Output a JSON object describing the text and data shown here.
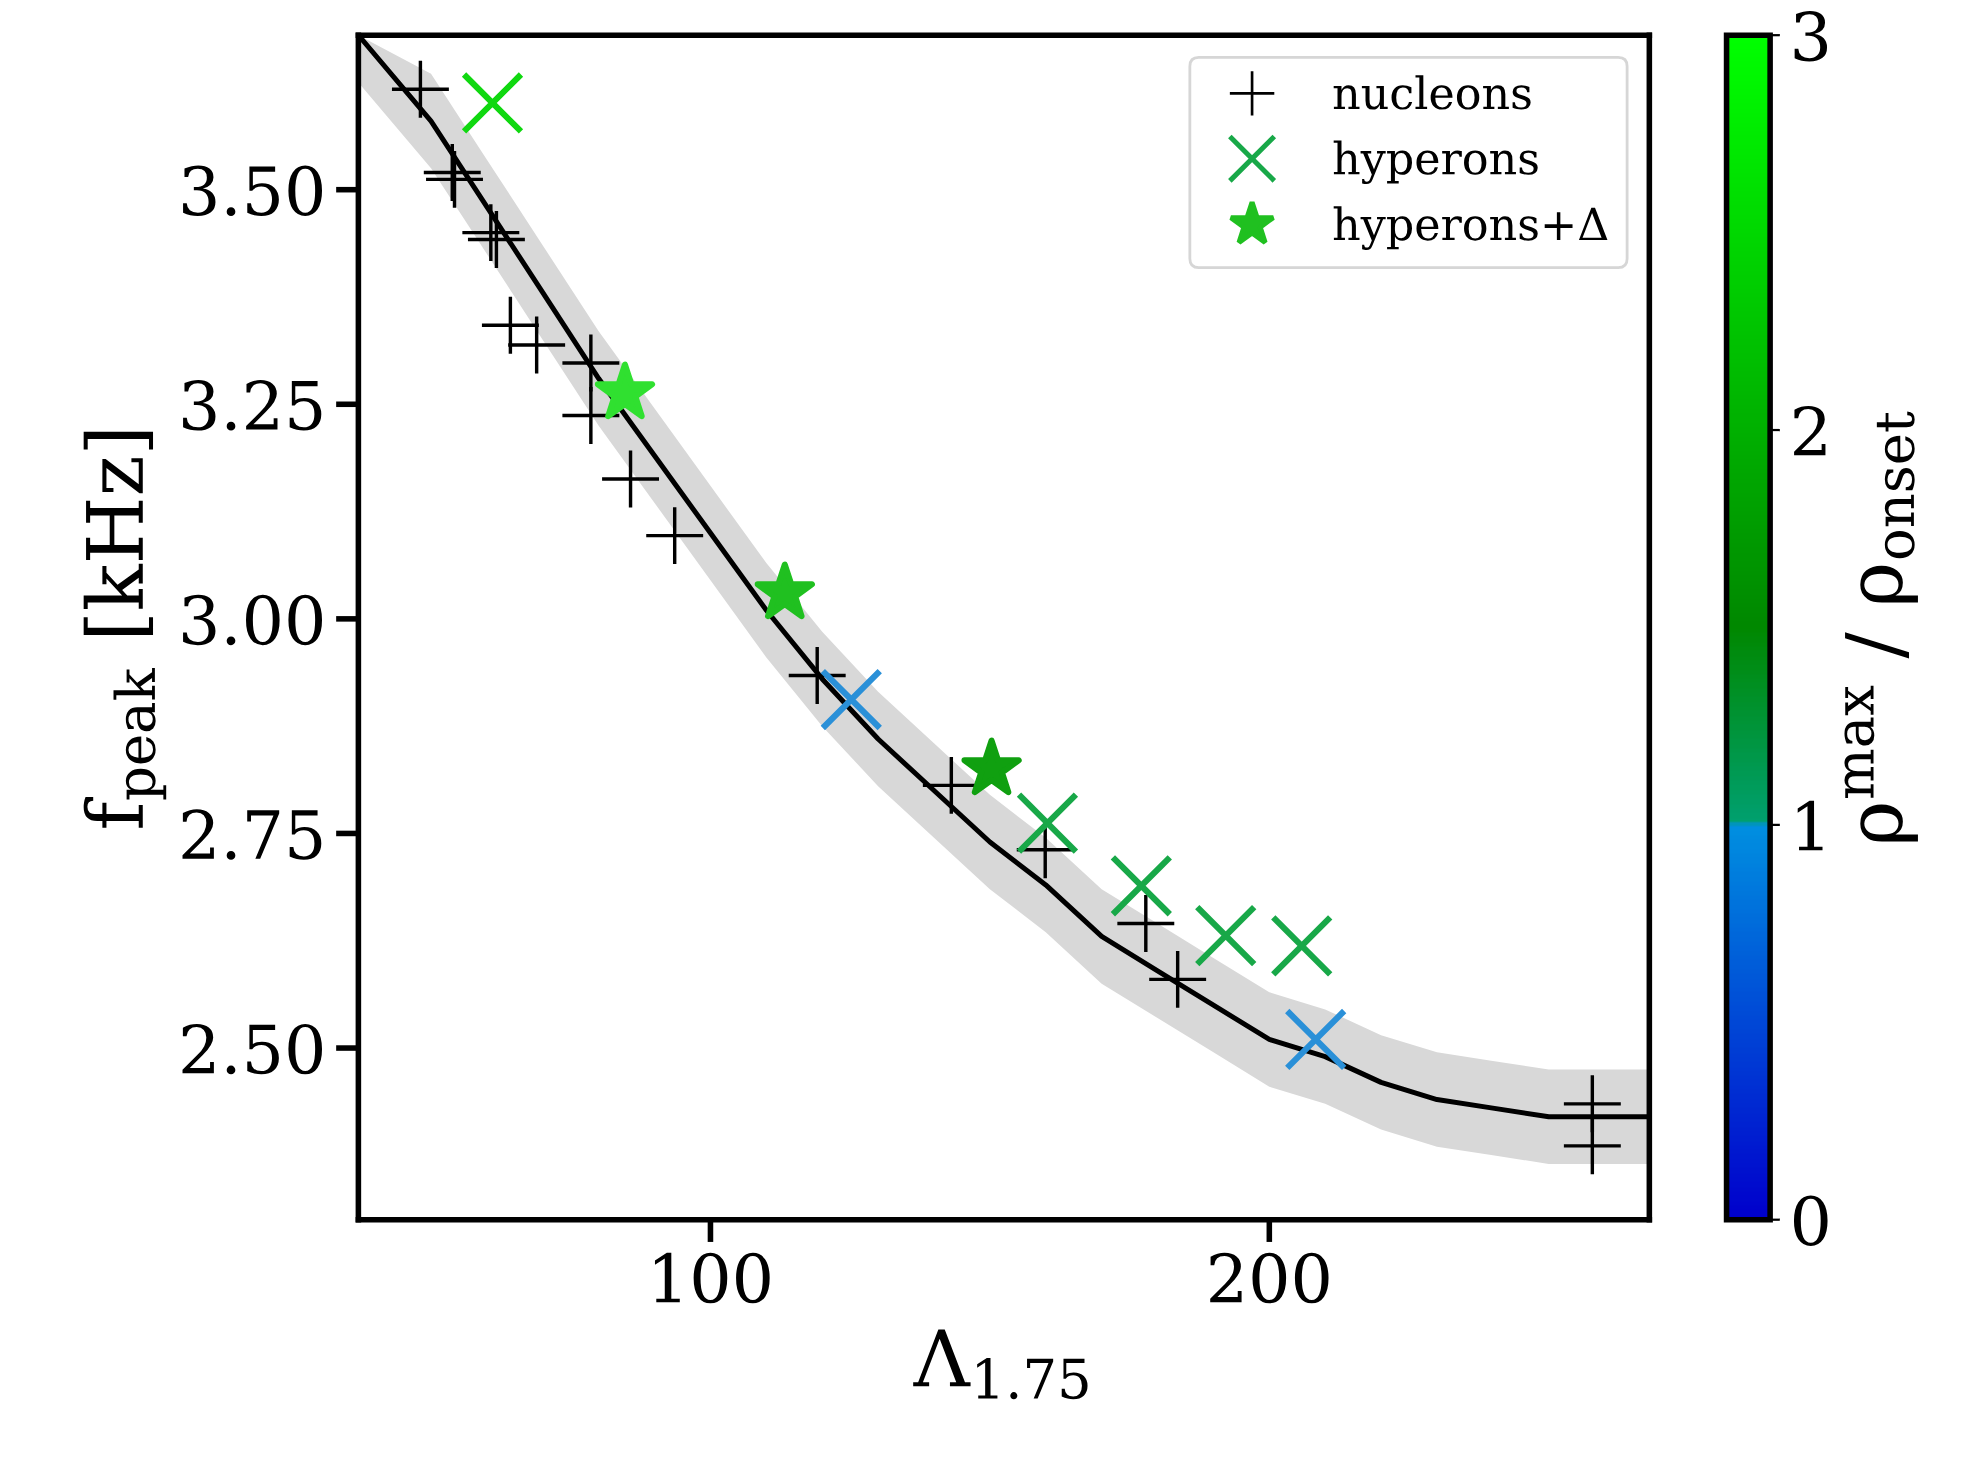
{
  "chart_data": {
    "type": "scatter",
    "xlabel": "Λ$_{1.75}$",
    "ylabel": "f$_{peak}$ [kHz]",
    "clabel": "ρ$^{max}$ / ρ$_{onset}$",
    "xlim": [
      37,
      268
    ],
    "ylim": [
      2.3,
      3.68
    ],
    "xticks": [
      100,
      200
    ],
    "yticks": [
      {
        "value": 2.5,
        "label": "2.50"
      },
      {
        "value": 2.75,
        "label": "2.75"
      },
      {
        "value": 3.0,
        "label": "3.00"
      },
      {
        "value": 3.25,
        "label": "3.25"
      },
      {
        "value": 3.5,
        "label": "3.50"
      }
    ],
    "clim": [
      0,
      3
    ],
    "cticks": [
      0,
      1,
      2,
      3
    ],
    "grid": false,
    "legend": "top right",
    "series": [
      {
        "type": "line",
        "color": "#000000",
        "line_style": "solid",
        "marker": "none",
        "x": [
          37,
          50,
          60,
          70,
          80,
          90,
          100,
          110,
          120,
          130,
          140,
          150,
          160,
          170,
          180,
          190,
          200,
          210,
          220,
          230,
          240,
          250,
          268
        ],
        "values": [
          3.68,
          3.58,
          3.48,
          3.38,
          3.28,
          3.19,
          3.1,
          3.01,
          2.93,
          2.86,
          2.8,
          2.74,
          2.69,
          2.63,
          2.59,
          2.55,
          2.51,
          2.49,
          2.46,
          2.44,
          2.43,
          2.42,
          2.42
        ],
        "lower": [
          3.625,
          3.525,
          3.425,
          3.325,
          3.225,
          3.135,
          3.045,
          2.955,
          2.875,
          2.805,
          2.745,
          2.685,
          2.635,
          2.575,
          2.535,
          2.495,
          2.455,
          2.435,
          2.405,
          2.385,
          2.375,
          2.365,
          2.365
        ],
        "upper": [
          3.68,
          3.635,
          3.535,
          3.435,
          3.335,
          3.245,
          3.155,
          3.065,
          2.985,
          2.915,
          2.855,
          2.795,
          2.745,
          2.685,
          2.645,
          2.605,
          2.565,
          2.545,
          2.515,
          2.495,
          2.485,
          2.475,
          2.475
        ]
      },
      {
        "name": "nucleons",
        "color": "#000000",
        "marker": "cross",
        "x": [
          48.1,
          54.2,
          53.8,
          61.7,
          60.7,
          64.2,
          68.9,
          78.6,
          78.6,
          85.7,
          93.6,
          119.1,
          143.1,
          159.9,
          177.9,
          183.6,
          257.8,
          257.8
        ],
        "values": [
          3.617,
          3.512,
          3.52,
          3.442,
          3.45,
          3.342,
          3.319,
          3.298,
          3.237,
          3.163,
          3.097,
          2.934,
          2.806,
          2.731,
          2.645,
          2.58,
          2.435,
          2.386
        ]
      },
      {
        "name": "hyperons",
        "color": "#18a848",
        "marker": "x",
        "x": [
          61.0,
          125.2,
          160.3,
          177.1,
          192.2,
          205.8,
          208.3
        ],
        "values": [
          3.601,
          2.906,
          2.762,
          2.689,
          2.631,
          2.619,
          2.51
        ],
        "colors": [
          "#10d810",
          "#2a90d8",
          "#18a848",
          "#18a848",
          "#18a848",
          "#18a848",
          "#2a90d8"
        ]
      },
      {
        "name": "hyperons+Δ",
        "color": "#20c020",
        "marker": "star",
        "x": [
          84.7,
          113.3,
          150.3
        ],
        "values": [
          3.263,
          3.03,
          2.825
        ],
        "colors": [
          "#30e030",
          "#20c020",
          "#10a010"
        ]
      }
    ]
  }
}
